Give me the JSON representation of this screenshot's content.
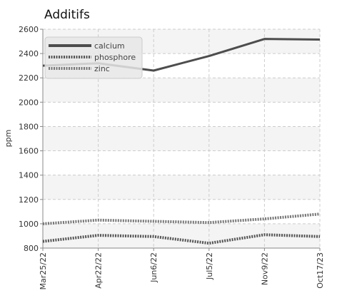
{
  "chart_data": {
    "type": "line",
    "title": "Additifs",
    "xlabel": "",
    "ylabel": "ppm",
    "categories": [
      "Mar25/22",
      "Apr22/22",
      "Jun6/22",
      "Jul5/22",
      "Nov9/22",
      "Oct17/23"
    ],
    "ylim": [
      800,
      2600
    ],
    "yticks": [
      800,
      1000,
      1200,
      1400,
      1600,
      1800,
      2000,
      2200,
      2400,
      2600
    ],
    "grid": true,
    "legend_position": "top-left",
    "series": [
      {
        "name": "calcium",
        "values": [
          2300,
          2320,
          2260,
          2380,
          2520,
          2515
        ],
        "color": "#4d4d4d",
        "style": "solid"
      },
      {
        "name": "phosphore",
        "values": [
          855,
          905,
          895,
          840,
          910,
          895
        ],
        "color": "#555555",
        "style": "dotted"
      },
      {
        "name": "zinc",
        "values": [
          1000,
          1030,
          1020,
          1010,
          1040,
          1080
        ],
        "color": "#777777",
        "style": "dotted"
      }
    ]
  }
}
